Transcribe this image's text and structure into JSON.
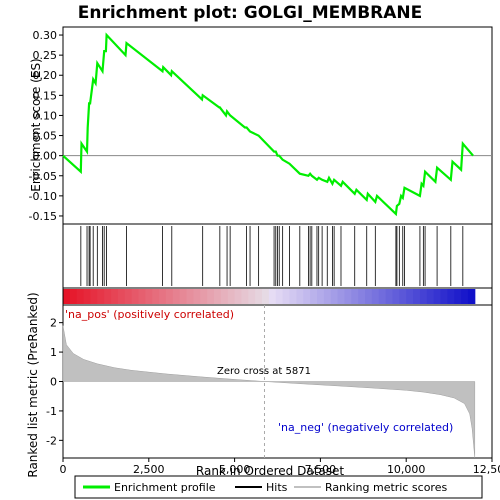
{
  "chart_data": {
    "type": "line",
    "title": "Enrichment plot: GOLGI_MEMBRANE",
    "xlabel": "Rank in Ordered Dataset",
    "ylabel_top": "Enrichment score (ES)",
    "ylabel_bottom": "Ranked list metric (PreRanked)",
    "x_ticks": [
      "0",
      "2,500",
      "5,000",
      "7,500",
      "10,000",
      "12,500"
    ],
    "x_tick_values": [
      0,
      2500,
      5000,
      7500,
      10000,
      12500
    ],
    "es_y_ticks": [
      "0.30",
      "0.25",
      "0.20",
      "0.15",
      "0.10",
      "0.05",
      "0.00",
      "-0.05",
      "-0.10",
      "-0.15"
    ],
    "es_y_tick_values": [
      0.3,
      0.25,
      0.2,
      0.15,
      0.1,
      0.05,
      0.0,
      -0.05,
      -0.1,
      -0.15
    ],
    "metric_y_ticks": [
      "2",
      "1",
      "0",
      "-1",
      "-2"
    ],
    "metric_y_tick_values": [
      2,
      1,
      0,
      -1,
      -2
    ],
    "xlim": [
      0,
      12500
    ],
    "es_ylim": [
      -0.17,
      0.32
    ],
    "metric_ylim": [
      -2.6,
      2.6
    ],
    "zero_cross_label": "Zero cross at 5871",
    "zero_cross": 5871,
    "pos_label": "'na_pos' (positively correlated)",
    "neg_label": "'na_neg' (negatively correlated)",
    "total_ranks": 12000,
    "es_curve": {
      "x": [
        0,
        520,
        540,
        700,
        720,
        760,
        790,
        880,
        950,
        1000,
        1150,
        1200,
        1250,
        1270,
        1820,
        1850,
        2900,
        2920,
        3150,
        3170,
        4050,
        4070,
        4550,
        4570,
        4750,
        4780,
        4870,
        5300,
        5350,
        5450,
        5700,
        6150,
        6200,
        6250,
        6300,
        6400,
        6600,
        6900,
        7150,
        7200,
        7250,
        7400,
        7450,
        7550,
        7700,
        7750,
        7850,
        7900,
        8100,
        8150,
        8500,
        8550,
        8850,
        8880,
        9100,
        9150,
        9700,
        9730,
        9800,
        9850,
        9900,
        9950,
        10400,
        10450,
        10500,
        10550,
        10850,
        10900,
        11300,
        11350,
        11600,
        11650,
        11950
      ],
      "y": [
        0.0,
        -0.04,
        0.03,
        0.01,
        0.07,
        0.13,
        0.13,
        0.19,
        0.18,
        0.23,
        0.21,
        0.26,
        0.26,
        0.3,
        0.25,
        0.28,
        0.21,
        0.22,
        0.2,
        0.21,
        0.14,
        0.15,
        0.12,
        0.12,
        0.1,
        0.11,
        0.1,
        0.07,
        0.07,
        0.06,
        0.05,
        0.01,
        0.01,
        0.0,
        0.0,
        -0.01,
        -0.02,
        -0.045,
        -0.05,
        -0.045,
        -0.05,
        -0.06,
        -0.055,
        -0.06,
        -0.065,
        -0.055,
        -0.07,
        -0.06,
        -0.075,
        -0.065,
        -0.095,
        -0.085,
        -0.11,
        -0.095,
        -0.115,
        -0.1,
        -0.145,
        -0.125,
        -0.12,
        -0.1,
        -0.105,
        -0.08,
        -0.1,
        -0.07,
        -0.075,
        -0.04,
        -0.065,
        -0.03,
        -0.06,
        -0.015,
        -0.035,
        0.03,
        0.0
      ]
    },
    "hits": [
      520,
      700,
      760,
      790,
      880,
      1000,
      1150,
      1200,
      1270,
      1850,
      2900,
      3170,
      4070,
      4570,
      4780,
      4870,
      5350,
      5450,
      5700,
      6150,
      6200,
      6250,
      6300,
      6400,
      6600,
      6900,
      7150,
      7200,
      7250,
      7400,
      7450,
      7550,
      7700,
      7850,
      7900,
      8100,
      8500,
      8850,
      9100,
      9700,
      9730,
      9800,
      9900,
      9950,
      10400,
      10500,
      10550,
      10900,
      11300,
      11650
    ],
    "metric_curve": {
      "x": [
        0,
        100,
        300,
        600,
        1000,
        1500,
        2000,
        3000,
        4000,
        5000,
        5871,
        7000,
        8000,
        9000,
        10000,
        10500,
        11000,
        11400,
        11700,
        11850,
        11920,
        12000
      ],
      "y": [
        1.9,
        1.25,
        0.95,
        0.75,
        0.6,
        0.47,
        0.38,
        0.26,
        0.16,
        0.07,
        0.0,
        -0.08,
        -0.15,
        -0.22,
        -0.3,
        -0.36,
        -0.45,
        -0.56,
        -0.75,
        -1.1,
        -1.6,
        -2.6
      ]
    },
    "legend": [
      "Enrichment profile",
      "Hits",
      "Ranking metric scores"
    ],
    "colors": {
      "es_line": "#00ee00",
      "hit": "#000000",
      "metric_fill": "#c0c0c0",
      "pos_text": "#cc0000",
      "neg_text": "#0000cc",
      "zero_line": "#aaaaaa"
    }
  }
}
